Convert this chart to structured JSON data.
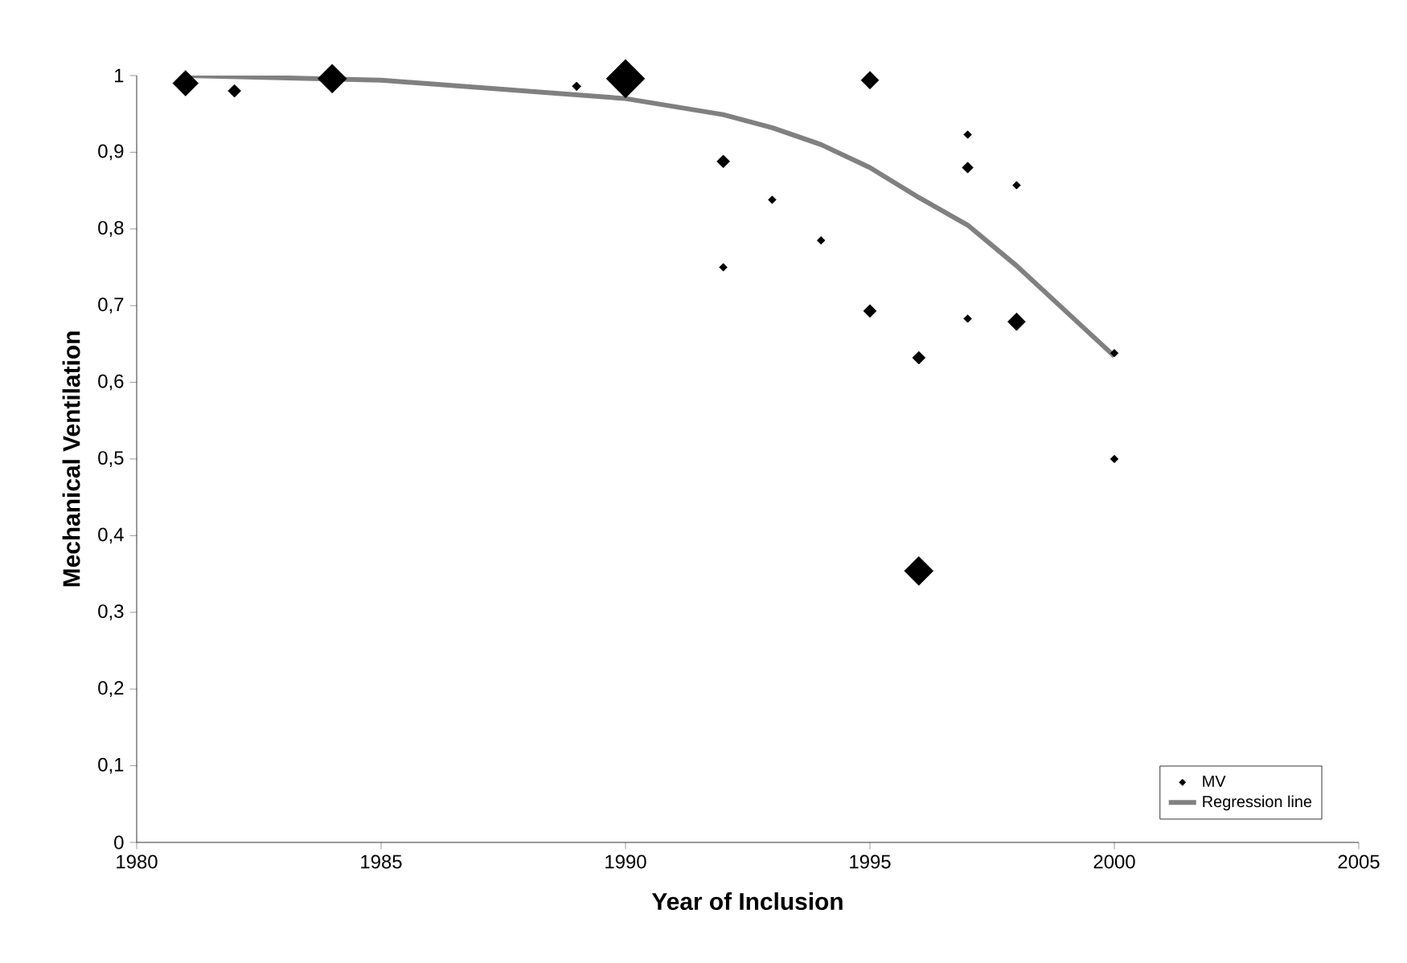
{
  "chart_data": {
    "type": "bubble",
    "xlabel": "Year of Inclusion",
    "ylabel": "Mechanical Ventilation",
    "xlim": [
      1980,
      2005
    ],
    "xticks": [
      1980,
      1985,
      1990,
      1995,
      2000,
      2005
    ],
    "ylim": [
      0,
      1
    ],
    "yticks": [
      0,
      {
        "value": 0.1,
        "label": "0,1"
      },
      {
        "value": 0.2,
        "label": "0,2"
      },
      {
        "value": 0.3,
        "label": "0,3"
      },
      {
        "value": 0.4,
        "label": "0,4"
      },
      {
        "value": 0.5,
        "label": "0,5"
      },
      {
        "value": 0.6,
        "label": "0,6"
      },
      {
        "value": 0.7,
        "label": "0,7"
      },
      {
        "value": 0.8,
        "label": "0,8"
      },
      {
        "value": 0.9,
        "label": "0,9"
      },
      1
    ],
    "legend": "bottom right",
    "grid": false,
    "series": [
      {
        "name": "MV",
        "marker": "diamond",
        "color": "#000000",
        "x": [
          1981,
          1982,
          1984,
          1989,
          1990,
          1992,
          1992,
          1993,
          1994,
          1995,
          1995,
          1996,
          1996,
          1997,
          1997,
          1997,
          1998,
          1998,
          2000,
          2000
        ],
        "values": [
          0.99,
          0.98,
          0.996,
          0.986,
          0.996,
          0.888,
          0.75,
          0.838,
          0.785,
          0.994,
          0.693,
          0.632,
          0.354,
          0.923,
          0.88,
          0.683,
          0.857,
          0.679,
          0.638,
          0.5
        ],
        "sizes": [
          0.44,
          0.11,
          0.56,
          0.05,
          1,
          0.11,
          0.04,
          0.04,
          0.04,
          0.21,
          0.11,
          0.11,
          0.56,
          0.04,
          0.08,
          0.04,
          0.04,
          0.21,
          0.04,
          0.04
        ]
      },
      {
        "name": "Regression line",
        "type": "line",
        "color": "#808080",
        "x": [
          1981,
          1985,
          1990,
          1992,
          1993,
          1994,
          1995,
          1996,
          1997,
          1998,
          2000
        ],
        "values": [
          1.0,
          0.994,
          0.97,
          0.949,
          0.932,
          0.91,
          0.88,
          0.841,
          0.805,
          0.752,
          0.634
        ]
      }
    ]
  }
}
